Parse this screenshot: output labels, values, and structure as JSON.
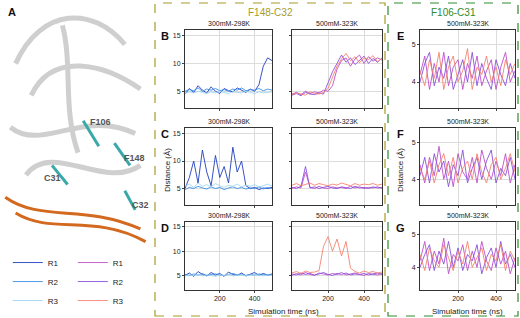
{
  "panel_a": {
    "panel": "A",
    "labels": [
      "F106",
      "F148",
      "C31",
      "C32"
    ]
  },
  "groups": [
    {
      "title": "F148-C32",
      "color": "#a89c2a"
    },
    {
      "title": "F106-C31",
      "color": "#2e8b2e"
    }
  ],
  "axis_labels": {
    "x": "Simulation time (ns)",
    "y": "Distance (Å)"
  },
  "chart_data": [
    {
      "type": "line",
      "panel": "B",
      "title": "300mM-298K",
      "x": [
        0,
        25,
        50,
        75,
        100,
        125,
        150,
        175,
        200,
        225,
        250,
        275,
        300,
        325,
        350,
        375,
        400,
        425,
        450,
        475,
        500
      ],
      "xlim": [
        0,
        500
      ],
      "xticks": [
        200,
        400
      ],
      "ylim": [
        2,
        16
      ],
      "yticks": [
        5,
        10,
        15
      ],
      "grid": true,
      "tick_labels": "y",
      "series": [
        {
          "name": "R1",
          "color": "#1f3fbf",
          "values": [
            4.5,
            5.5,
            4.8,
            6,
            5.2,
            4.7,
            5.8,
            5,
            4.6,
            5.5,
            5.1,
            4.9,
            5.6,
            5.2,
            4.8,
            5.4,
            5,
            6.2,
            9.5,
            11,
            10.5
          ]
        },
        {
          "name": "R2",
          "color": "#3d8ee6",
          "values": [
            5,
            5.3,
            5.1,
            5.6,
            5,
            5.4,
            5.2,
            5.5,
            5.1,
            5.3,
            5,
            5.4,
            5.2,
            5.6,
            5.1,
            5.3,
            5.2,
            5.5,
            5.1,
            5.4,
            5.2
          ]
        },
        {
          "name": "R3",
          "color": "#9fd6f2",
          "values": [
            4.6,
            4.9,
            4.7,
            5,
            4.8,
            4.6,
            4.9,
            4.7,
            5,
            4.8,
            4.6,
            4.9,
            4.8,
            4.7,
            5,
            4.8,
            4.6,
            4.9,
            4.7,
            4.8,
            4.9
          ]
        }
      ]
    },
    {
      "type": "line",
      "title": "500mM-323K",
      "x": [
        0,
        25,
        50,
        75,
        100,
        125,
        150,
        175,
        200,
        225,
        250,
        275,
        300,
        325,
        350,
        375,
        400,
        425,
        450,
        475,
        500
      ],
      "xlim": [
        0,
        500
      ],
      "xticks": [
        200,
        400
      ],
      "ylim": [
        2,
        16
      ],
      "yticks": [
        5,
        10,
        15
      ],
      "grid": true,
      "tick_labels": false,
      "series": [
        {
          "name": "R1",
          "color": "#c04fc8",
          "values": [
            4.5,
            4.8,
            4.4,
            5,
            4.6,
            4.9,
            4.7,
            5.2,
            5,
            6,
            9,
            10.5,
            11,
            9.5,
            10.8,
            11.5,
            10,
            11.2,
            10.4,
            11,
            10.6
          ]
        },
        {
          "name": "R2",
          "color": "#8a50dc",
          "values": [
            4.3,
            4.6,
            4.2,
            4.8,
            4.5,
            4.4,
            4.7,
            4.5,
            6.5,
            8.5,
            10,
            11.5,
            10.2,
            11,
            9.8,
            10.5,
            11.3,
            10,
            10.9,
            10.2,
            11
          ]
        },
        {
          "name": "R3",
          "color": "#f4826f",
          "values": [
            4.4,
            4.7,
            4.5,
            4.3,
            4.9,
            4.6,
            4.5,
            4.8,
            5.5,
            7.5,
            9.5,
            10.8,
            11.8,
            10.5,
            11.2,
            10.1,
            11,
            10.7,
            11.4,
            10.3,
            10.9
          ]
        }
      ]
    },
    {
      "type": "line",
      "panel": "C",
      "title": "300mM-298K",
      "x": [
        0,
        25,
        50,
        75,
        100,
        125,
        150,
        175,
        200,
        225,
        250,
        275,
        300,
        325,
        350,
        375,
        400,
        425,
        450,
        475,
        500
      ],
      "xlim": [
        0,
        500
      ],
      "xticks": [
        200,
        400
      ],
      "ylim": [
        2,
        16
      ],
      "yticks": [
        5,
        10,
        15
      ],
      "grid": true,
      "tick_labels": "y",
      "series": [
        {
          "name": "R1",
          "color": "#1f3fbf",
          "values": [
            5,
            7,
            10,
            6,
            12,
            8,
            5.5,
            11,
            7,
            9,
            6,
            12.5,
            8,
            10,
            5.5,
            5,
            5.2,
            4.8,
            5.1,
            5,
            5.2
          ]
        },
        {
          "name": "R2",
          "color": "#3d8ee6",
          "values": [
            4.8,
            5.2,
            5,
            5.4,
            5.1,
            4.9,
            5.3,
            5,
            5.2,
            4.8,
            5.1,
            5.3,
            5,
            5.2,
            4.9,
            5.1,
            5,
            5.3,
            4.9,
            5.2,
            5
          ]
        },
        {
          "name": "R3",
          "color": "#9fd6f2",
          "values": [
            5.5,
            5.8,
            5.2,
            6,
            5.4,
            5.7,
            5.3,
            5.9,
            5.5,
            5.2,
            5.6,
            5.4,
            5.8,
            5.3,
            5.6,
            5.4,
            5.7,
            5.3,
            5.5,
            5.8,
            5.4
          ]
        }
      ]
    },
    {
      "type": "line",
      "title": "500mM-323K",
      "x": [
        0,
        25,
        50,
        75,
        100,
        125,
        150,
        175,
        200,
        225,
        250,
        275,
        300,
        325,
        350,
        375,
        400,
        425,
        450,
        475,
        500
      ],
      "xlim": [
        0,
        500
      ],
      "xticks": [
        200,
        400
      ],
      "ylim": [
        2,
        16
      ],
      "yticks": [
        5,
        10,
        15
      ],
      "grid": true,
      "tick_labels": false,
      "series": [
        {
          "name": "R1",
          "color": "#c04fc8",
          "values": [
            5,
            5.3,
            5.1,
            8,
            5.2,
            5,
            5.4,
            5.1,
            5,
            5.3,
            5.1,
            5.2,
            5,
            5.4,
            5.1,
            5.3,
            5,
            5.2,
            5.1,
            5.3,
            5
          ]
        },
        {
          "name": "R2",
          "color": "#8a50dc",
          "values": [
            5.2,
            5,
            5.4,
            9,
            5.1,
            5.3,
            5,
            5.2,
            5.4,
            5.1,
            5,
            5.3,
            5.2,
            5,
            5.4,
            5.1,
            5.2,
            5,
            5.3,
            5.1,
            5.2
          ]
        },
        {
          "name": "R3",
          "color": "#f4826f",
          "values": [
            5.6,
            5.9,
            5.5,
            5.8,
            6,
            5.6,
            5.9,
            5.7,
            5.5,
            5.8,
            5.6,
            6,
            5.7,
            5.5,
            5.9,
            5.6,
            5.8,
            5.7,
            5.9,
            5.6,
            5.8
          ]
        }
      ]
    },
    {
      "type": "line",
      "panel": "D",
      "title": "300mM-298K",
      "x": [
        0,
        25,
        50,
        75,
        100,
        125,
        150,
        175,
        200,
        225,
        250,
        275,
        300,
        325,
        350,
        375,
        400,
        425,
        450,
        475,
        500
      ],
      "xlim": [
        0,
        500
      ],
      "xticks": [
        200,
        400
      ],
      "ylim": [
        2,
        16
      ],
      "yticks": [
        5,
        10,
        15
      ],
      "grid": true,
      "series": [
        {
          "name": "R1",
          "color": "#1f3fbf",
          "values": [
            5,
            5.5,
            4.8,
            5.8,
            5.2,
            4.9,
            5.6,
            5.1,
            5.4,
            4.8,
            5.7,
            5.2,
            5,
            5.5,
            4.9,
            5.3,
            5.6,
            5,
            5.4,
            5.1,
            5.3
          ]
        },
        {
          "name": "R2",
          "color": "#3d8ee6",
          "values": [
            5.2,
            5,
            5.3,
            5.1,
            5.4,
            5,
            5.2,
            5.3,
            5.1,
            5,
            5.2,
            5.4,
            5.1,
            5.3,
            5,
            5.2,
            5.1,
            5.3,
            5.2,
            5,
            5.2
          ]
        },
        {
          "name": "R3",
          "color": "#9fd6f2",
          "values": [
            4.9,
            5.1,
            5,
            5.2,
            4.9,
            5.1,
            5,
            4.8,
            5.1,
            5,
            5.2,
            4.9,
            5,
            5.1,
            4.9,
            5,
            5.2,
            5,
            4.9,
            5.1,
            5
          ]
        }
      ]
    },
    {
      "type": "line",
      "title": "500mM-323K",
      "x": [
        0,
        25,
        50,
        75,
        100,
        125,
        150,
        175,
        200,
        225,
        250,
        275,
        300,
        325,
        350,
        375,
        400,
        425,
        450,
        475,
        500
      ],
      "xlim": [
        0,
        500
      ],
      "xticks": [
        200,
        400
      ],
      "ylim": [
        2,
        16
      ],
      "yticks": [
        5,
        10,
        15
      ],
      "grid": true,
      "tick_labels": "x",
      "series": [
        {
          "name": "R1",
          "color": "#c04fc8",
          "values": [
            5,
            5.4,
            5.1,
            5.6,
            5.2,
            5,
            5.5,
            5.3,
            5.1,
            5.4,
            5.2,
            5.6,
            5.1,
            5.3,
            5.5,
            5.2,
            5,
            5.4,
            5.3,
            5.1,
            5.4
          ]
        },
        {
          "name": "R2",
          "color": "#8a50dc",
          "values": [
            5.3,
            5.1,
            5.5,
            5.2,
            5.4,
            5.1,
            5.3,
            5.6,
            5.2,
            5,
            5.4,
            5.2,
            5.5,
            5.1,
            5.3,
            5.2,
            5.4,
            5.1,
            5.3,
            5.5,
            5.2
          ]
        },
        {
          "name": "R3",
          "color": "#f4826f",
          "values": [
            5.5,
            5.8,
            5.4,
            5.9,
            5.6,
            5.7,
            6,
            11,
            13,
            10,
            12.5,
            9,
            12,
            6.5,
            5.8,
            5.5,
            5.9,
            5.6,
            5.8,
            5.5,
            5.7
          ]
        }
      ]
    },
    {
      "type": "line",
      "panel": "E",
      "title": "500mM-323K",
      "x": [
        0,
        25,
        50,
        75,
        100,
        125,
        150,
        175,
        200,
        225,
        250,
        275,
        300,
        325,
        350,
        375,
        400,
        425,
        450,
        475,
        500
      ],
      "xlim": [
        0,
        500
      ],
      "xticks": [
        200,
        400
      ],
      "ylim": [
        3.3,
        5.4
      ],
      "yticks": [
        4,
        5
      ],
      "grid": true,
      "tick_labels": "y",
      "series": [
        {
          "name": "R1",
          "color": "#c04fc8",
          "values": [
            4.2,
            4.7,
            3.8,
            4.5,
            4.0,
            4.8,
            3.9,
            4.4,
            4.6,
            3.8,
            4.5,
            4.1,
            4.7,
            3.9,
            4.3,
            4.6,
            3.8,
            4.4,
            4.8,
            4.0,
            4.3
          ]
        },
        {
          "name": "R2",
          "color": "#8a50dc",
          "values": [
            4.0,
            4.5,
            4.8,
            3.9,
            4.4,
            4.1,
            4.7,
            3.8,
            4.2,
            4.6,
            4.0,
            4.8,
            3.9,
            4.5,
            4.1,
            3.8,
            4.6,
            4.2,
            3.9,
            4.5,
            4.1
          ]
        },
        {
          "name": "R3",
          "color": "#f4826f",
          "values": [
            4.3,
            3.9,
            4.6,
            4.1,
            4.8,
            3.8,
            4.4,
            4.7,
            4.0,
            4.3,
            4.9,
            3.8,
            4.4,
            4.2,
            4.7,
            4.0,
            4.4,
            3.9,
            4.6,
            4.2,
            4.5
          ]
        }
      ]
    },
    {
      "type": "line",
      "panel": "F",
      "title": "500mM-323K",
      "x": [
        0,
        25,
        50,
        75,
        100,
        125,
        150,
        175,
        200,
        225,
        250,
        275,
        300,
        325,
        350,
        375,
        400,
        425,
        450,
        475,
        500
      ],
      "xlim": [
        0,
        500
      ],
      "xticks": [
        200,
        400
      ],
      "ylim": [
        3.3,
        5.4
      ],
      "yticks": [
        4,
        5
      ],
      "grid": true,
      "tick_labels": "y",
      "series": [
        {
          "name": "R1",
          "color": "#c04fc8",
          "values": [
            4.4,
            3.9,
            4.6,
            4.1,
            4.9,
            4.0,
            4.5,
            3.8,
            4.7,
            4.2,
            4.0,
            4.6,
            3.9,
            4.8,
            4.3,
            4.0,
            4.5,
            4.1,
            4.7,
            3.9,
            4.4
          ]
        },
        {
          "name": "R2",
          "color": "#8a50dc",
          "values": [
            4.1,
            4.6,
            3.9,
            4.7,
            4.2,
            4.5,
            3.8,
            4.4,
            4.1,
            4.8,
            3.9,
            4.3,
            4.6,
            4.0,
            4.5,
            4.8,
            3.9,
            4.3,
            4.1,
            4.6,
            4.0
          ]
        },
        {
          "name": "R3",
          "color": "#f4826f",
          "values": [
            4.3,
            4.0,
            4.5,
            3.9,
            4.4,
            4.7,
            4.1,
            4.6,
            3.9,
            4.3,
            4.5,
            4.0,
            4.7,
            4.2,
            3.9,
            4.4,
            4.6,
            4.0,
            4.3,
            4.7,
            4.2
          ]
        }
      ]
    },
    {
      "type": "line",
      "panel": "G",
      "title": "500mM-323K",
      "x": [
        0,
        25,
        50,
        75,
        100,
        125,
        150,
        175,
        200,
        225,
        250,
        275,
        300,
        325,
        350,
        375,
        400,
        425,
        450,
        475,
        500
      ],
      "xlim": [
        0,
        500
      ],
      "xticks": [
        200,
        400
      ],
      "ylim": [
        3.3,
        5.4
      ],
      "yticks": [
        4,
        5
      ],
      "grid": true,
      "series": [
        {
          "name": "R1",
          "color": "#c04fc8",
          "values": [
            4.2,
            4.8,
            3.9,
            4.5,
            4.1,
            4.9,
            3.8,
            4.4,
            4.2,
            4.7,
            3.9,
            4.5,
            4.0,
            4.8,
            4.2,
            3.9,
            4.6,
            4.1,
            4.5,
            3.8,
            4.3
          ]
        },
        {
          "name": "R2",
          "color": "#8a50dc",
          "values": [
            4.0,
            4.4,
            4.7,
            3.9,
            4.5,
            4.1,
            4.8,
            4.0,
            4.6,
            3.9,
            4.4,
            4.2,
            4.7,
            3.8,
            4.3,
            4.6,
            4.0,
            4.8,
            4.1,
            4.4,
            4.0
          ]
        },
        {
          "name": "R3",
          "color": "#f4826f",
          "values": [
            4.4,
            3.9,
            4.6,
            4.2,
            4.0,
            4.7,
            4.3,
            3.9,
            4.5,
            4.1,
            4.8,
            4.0,
            4.3,
            4.6,
            3.9,
            4.4,
            4.2,
            4.7,
            3.9,
            4.5,
            4.2
          ]
        }
      ]
    }
  ]
}
